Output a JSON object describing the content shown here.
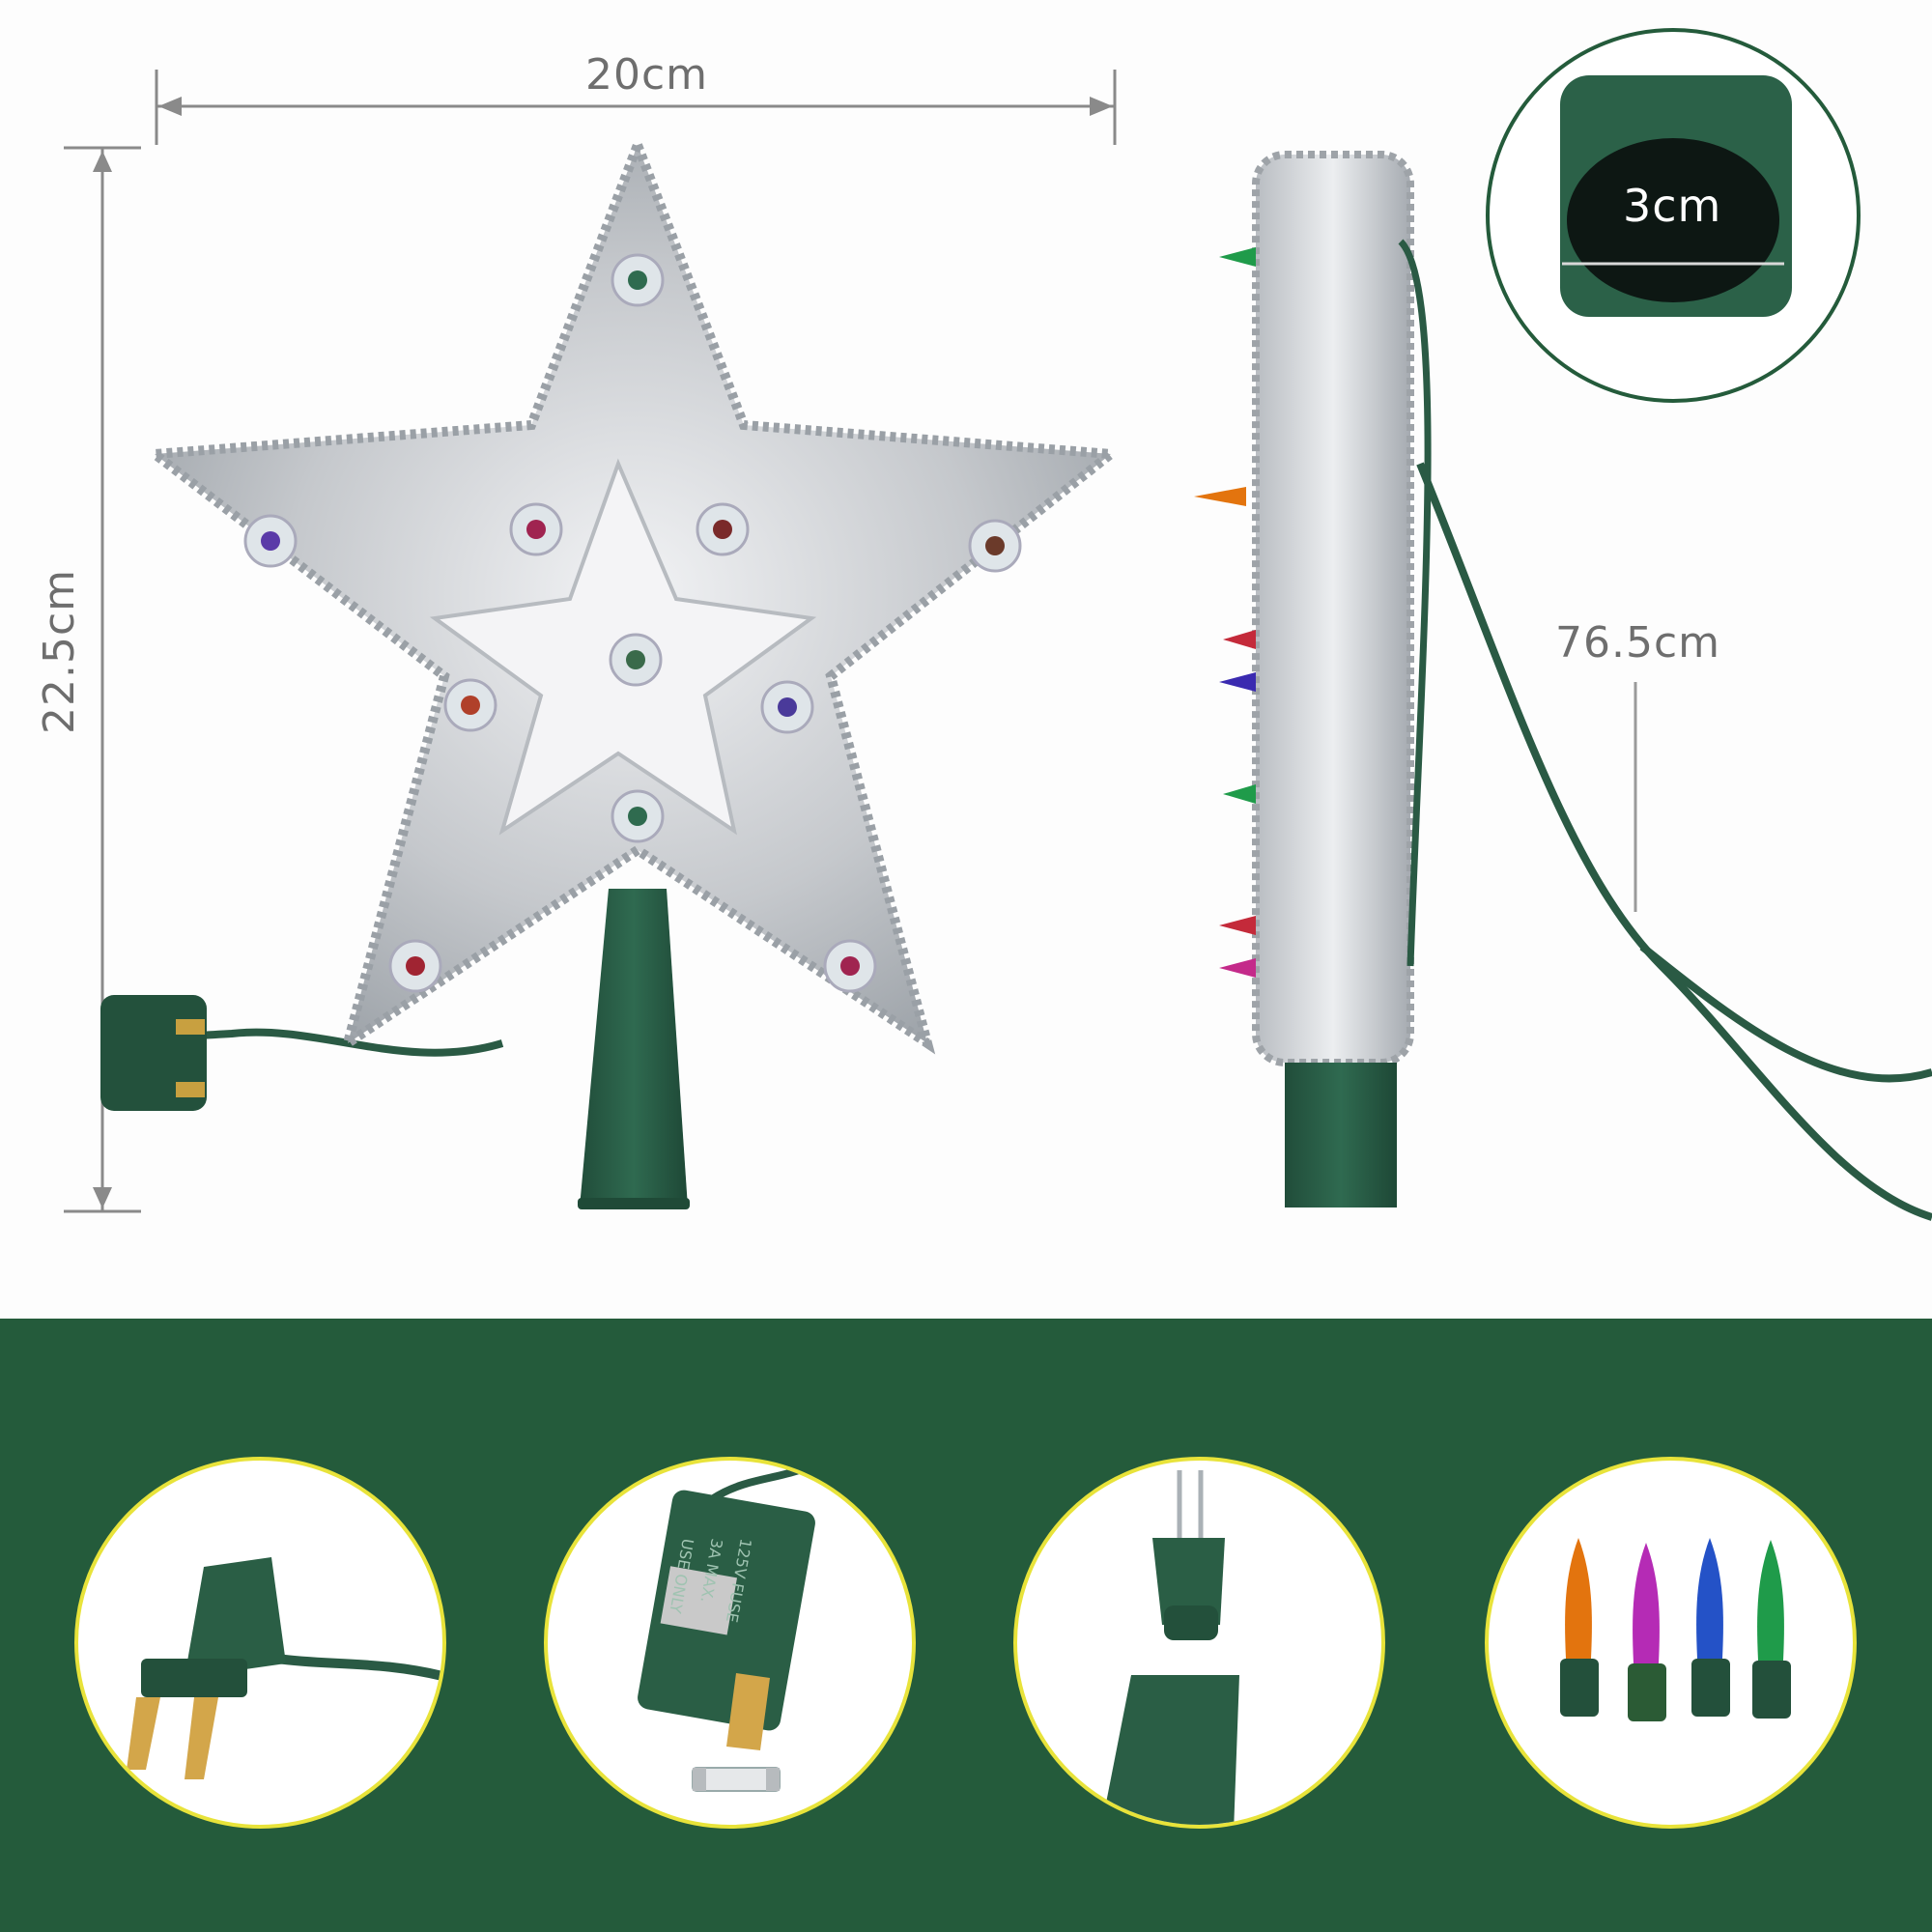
{
  "dimensions": {
    "width": "20cm",
    "height": "22.5cm",
    "base_diameter": "3cm",
    "cable_length": "76.5cm"
  },
  "details": [
    {
      "name": "plug-detail",
      "icon": "two-prong-plug-icon"
    },
    {
      "name": "fuse-plug-detail",
      "icon": "fused-plug-icon",
      "plug_text": [
        "USE ONLY",
        "3A MAX.",
        "125V FUSE"
      ]
    },
    {
      "name": "bulb-socket-detail",
      "icon": "bulb-socket-icon"
    },
    {
      "name": "bulbs-detail",
      "icon": "colored-bulbs-icon",
      "bulb_colors": [
        "#e3740e",
        "#b52bb5",
        "#2452c7",
        "#1f9b4a"
      ]
    }
  ],
  "colors": {
    "background": "#fdfdfd",
    "band": "#245b3b",
    "circle_border": "#e8e33a",
    "cord_green": "#2a5a44",
    "tinsel": "#c9ccd0",
    "dimension_lines": "#8a8a8a"
  }
}
